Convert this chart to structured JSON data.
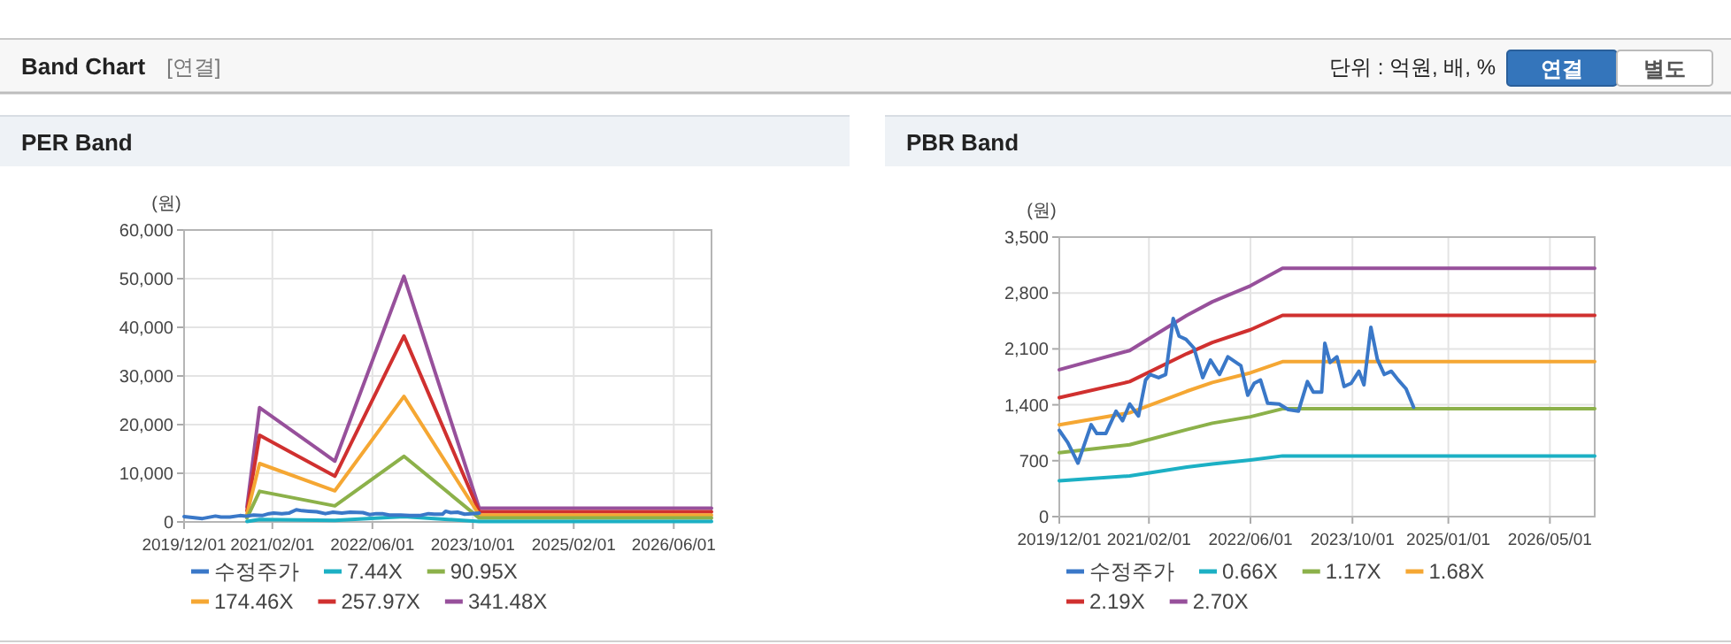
{
  "chart_data": [
    {
      "type": "other",
      "title": "Band Chart",
      "subtitle": "[연결]",
      "annotations": [
        "단위 : 억원, 배, %",
        "연결",
        "별도"
      ]
    },
    {
      "type": "line",
      "title": "PER Band",
      "ylabel": "(원)",
      "grid": true,
      "legend": "bottom",
      "xlim": [
        "2019-12-01",
        "2026-12-01"
      ],
      "ylim": [
        0,
        60000
      ],
      "xticks": [
        {
          "value": "2019-12-01",
          "label": "2019/12/01"
        },
        {
          "value": "2021-02-01",
          "label": "2021/02/01"
        },
        {
          "value": "2022-06-01",
          "label": "2022/06/01"
        },
        {
          "value": "2023-10-01",
          "label": "2023/10/01"
        },
        {
          "value": "2025-02-01",
          "label": "2025/02/01"
        },
        {
          "value": "2026-06-01",
          "label": "2026/06/01"
        }
      ],
      "yticks": [
        {
          "value": 0,
          "label": "0"
        },
        {
          "value": 10000,
          "label": "10,000"
        },
        {
          "value": 20000,
          "label": "20,000"
        },
        {
          "value": 30000,
          "label": "30,000"
        },
        {
          "value": 40000,
          "label": "40,000"
        },
        {
          "value": 50000,
          "label": "50,000"
        },
        {
          "value": 60000,
          "label": "60,000"
        }
      ],
      "series": [
        {
          "name": "수정주가",
          "color": "#3a78c8",
          "x": [
            "2019-12-01",
            "2020-01-10",
            "2020-02-28",
            "2020-05-01",
            "2020-05-28",
            "2020-07-10",
            "2020-08-28",
            "2020-09-28",
            "2020-11-01",
            "2020-12-13",
            "2021-01-16",
            "2021-02-07",
            "2021-03-19",
            "2021-04-22",
            "2021-05-28",
            "2021-06-25",
            "2021-07-28",
            "2021-09-04",
            "2021-10-16",
            "2021-11-22",
            "2022-01-04",
            "2022-02-13",
            "2022-04-16",
            "2022-05-19",
            "2022-06-19",
            "2022-07-19",
            "2022-08-22",
            "2022-10-16",
            "2022-11-28",
            "2023-01-16",
            "2023-02-28",
            "2023-03-28",
            "2023-05-07",
            "2023-05-22",
            "2023-06-16",
            "2023-07-19",
            "2023-08-22",
            "2023-09-25",
            "2023-11-01"
          ],
          "values": [
            1100,
            900,
            700,
            1200,
            1000,
            1000,
            1300,
            1200,
            1400,
            1300,
            1700,
            1800,
            1700,
            1800,
            2500,
            2300,
            2200,
            2100,
            1700,
            2000,
            1800,
            2000,
            1900,
            1500,
            1700,
            1700,
            1400,
            1400,
            1300,
            1300,
            1700,
            1600,
            1600,
            2200,
            1900,
            2000,
            1600,
            1700,
            1800
          ]
        },
        {
          "name": "7.44X",
          "color": "#1cb0c4",
          "x": [
            "2020-10-01",
            "2020-12-01",
            "2021-12-01",
            "2022-11-01",
            "2023-11-01",
            "2026-12-01"
          ],
          "values": [
            100,
            500,
            300,
            1100,
            100,
            100
          ]
        },
        {
          "name": "90.95X",
          "color": "#8cb14a",
          "x": [
            "2020-10-01",
            "2020-12-01",
            "2021-12-01",
            "2022-11-01",
            "2023-11-01",
            "2026-12-01"
          ],
          "values": [
            800,
            6300,
            3300,
            13500,
            800,
            800
          ]
        },
        {
          "name": "174.46X",
          "color": "#f5a733",
          "x": [
            "2020-10-01",
            "2020-12-01",
            "2021-12-01",
            "2022-11-01",
            "2023-11-01",
            "2026-12-01"
          ],
          "values": [
            1600,
            12000,
            6400,
            25800,
            1400,
            1400
          ]
        },
        {
          "name": "257.97X",
          "color": "#d0302f",
          "x": [
            "2020-10-01",
            "2020-12-01",
            "2021-12-01",
            "2022-11-01",
            "2023-11-01",
            "2026-12-01"
          ],
          "values": [
            2300,
            17800,
            9400,
            38200,
            2100,
            2100
          ]
        },
        {
          "name": "341.48X",
          "color": "#97509b",
          "x": [
            "2020-10-01",
            "2020-12-01",
            "2021-12-01",
            "2022-11-01",
            "2023-11-01",
            "2026-12-01"
          ],
          "values": [
            3100,
            23500,
            12500,
            50500,
            2800,
            2800
          ]
        }
      ]
    },
    {
      "type": "line",
      "title": "PBR Band",
      "ylabel": "(원)",
      "grid": true,
      "legend": "bottom",
      "xlim": [
        "2019-12-01",
        "2026-12-01"
      ],
      "ylim": [
        0,
        3500
      ],
      "xticks": [
        {
          "value": "2019-12-01",
          "label": "2019/12/01"
        },
        {
          "value": "2021-02-01",
          "label": "2021/02/01"
        },
        {
          "value": "2022-06-01",
          "label": "2022/06/01"
        },
        {
          "value": "2023-10-01",
          "label": "2023/10/01"
        },
        {
          "value": "2025-01-01",
          "label": "2025/01/01"
        },
        {
          "value": "2026-05-01",
          "label": "2026/05/01"
        }
      ],
      "yticks": [
        {
          "value": 0,
          "label": "0"
        },
        {
          "value": 700,
          "label": "700"
        },
        {
          "value": 1400,
          "label": "1,400"
        },
        {
          "value": 2100,
          "label": "2,100"
        },
        {
          "value": 2800,
          "label": "2,800"
        },
        {
          "value": 3500,
          "label": "3,500"
        }
      ],
      "series": [
        {
          "name": "수정주가",
          "color": "#3a78c8",
          "x": [
            "2019-12-01",
            "2020-01-10",
            "2020-02-28",
            "2020-05-01",
            "2020-05-28",
            "2020-07-10",
            "2020-08-28",
            "2020-09-28",
            "2020-11-01",
            "2020-12-13",
            "2021-01-16",
            "2021-02-07",
            "2021-03-19",
            "2021-04-22",
            "2021-05-28",
            "2021-06-25",
            "2021-07-28",
            "2021-09-04",
            "2021-10-16",
            "2021-11-22",
            "2022-01-04",
            "2022-02-13",
            "2022-04-16",
            "2022-05-19",
            "2022-06-19",
            "2022-07-19",
            "2022-08-22",
            "2022-10-16",
            "2022-11-28",
            "2023-01-16",
            "2023-02-28",
            "2023-03-28",
            "2023-05-07",
            "2023-05-22",
            "2023-06-16",
            "2023-07-19",
            "2023-08-22",
            "2023-09-25",
            "2023-11-01",
            "2023-11-25",
            "2023-12-28",
            "2024-01-28",
            "2024-03-01",
            "2024-04-04",
            "2024-05-07",
            "2024-06-13",
            "2024-07-19"
          ],
          "values": [
            1080,
            930,
            670,
            1150,
            1040,
            1040,
            1320,
            1200,
            1410,
            1260,
            1710,
            1780,
            1740,
            1780,
            2480,
            2260,
            2220,
            2110,
            1740,
            1960,
            1780,
            2000,
            1890,
            1520,
            1670,
            1710,
            1420,
            1410,
            1340,
            1320,
            1690,
            1560,
            1560,
            2170,
            1930,
            2000,
            1630,
            1670,
            1820,
            1650,
            2370,
            1970,
            1780,
            1820,
            1710,
            1600,
            1370
          ]
        },
        {
          "name": "0.66X",
          "color": "#1cb0c4",
          "x": [
            "2019-12-01",
            "2020-11-01",
            "2021-08-01",
            "2021-12-01",
            "2022-06-01",
            "2022-11-01",
            "2026-12-01"
          ],
          "values": [
            450,
            510,
            620,
            660,
            710,
            760,
            760
          ]
        },
        {
          "name": "1.17X",
          "color": "#8cb14a",
          "x": [
            "2019-12-01",
            "2020-11-01",
            "2021-08-01",
            "2021-12-01",
            "2022-06-01",
            "2022-11-01",
            "2026-12-01"
          ],
          "values": [
            800,
            900,
            1090,
            1170,
            1250,
            1350,
            1350
          ]
        },
        {
          "name": "1.68X",
          "color": "#f5a733",
          "x": [
            "2019-12-01",
            "2020-11-01",
            "2021-08-01",
            "2021-12-01",
            "2022-06-01",
            "2022-11-01",
            "2026-12-01"
          ],
          "values": [
            1150,
            1300,
            1570,
            1680,
            1800,
            1940,
            1940
          ]
        },
        {
          "name": "2.19X",
          "color": "#d0302f",
          "x": [
            "2019-12-01",
            "2020-11-01",
            "2021-08-01",
            "2021-12-01",
            "2022-06-01",
            "2022-11-01",
            "2026-12-01"
          ],
          "values": [
            1490,
            1690,
            2040,
            2180,
            2340,
            2520,
            2520
          ]
        },
        {
          "name": "2.70X",
          "color": "#97509b",
          "x": [
            "2019-12-01",
            "2020-11-01",
            "2021-08-01",
            "2021-12-01",
            "2022-06-01",
            "2022-11-01",
            "2026-12-01"
          ],
          "values": [
            1840,
            2080,
            2520,
            2690,
            2890,
            3110,
            3110
          ]
        }
      ]
    }
  ]
}
